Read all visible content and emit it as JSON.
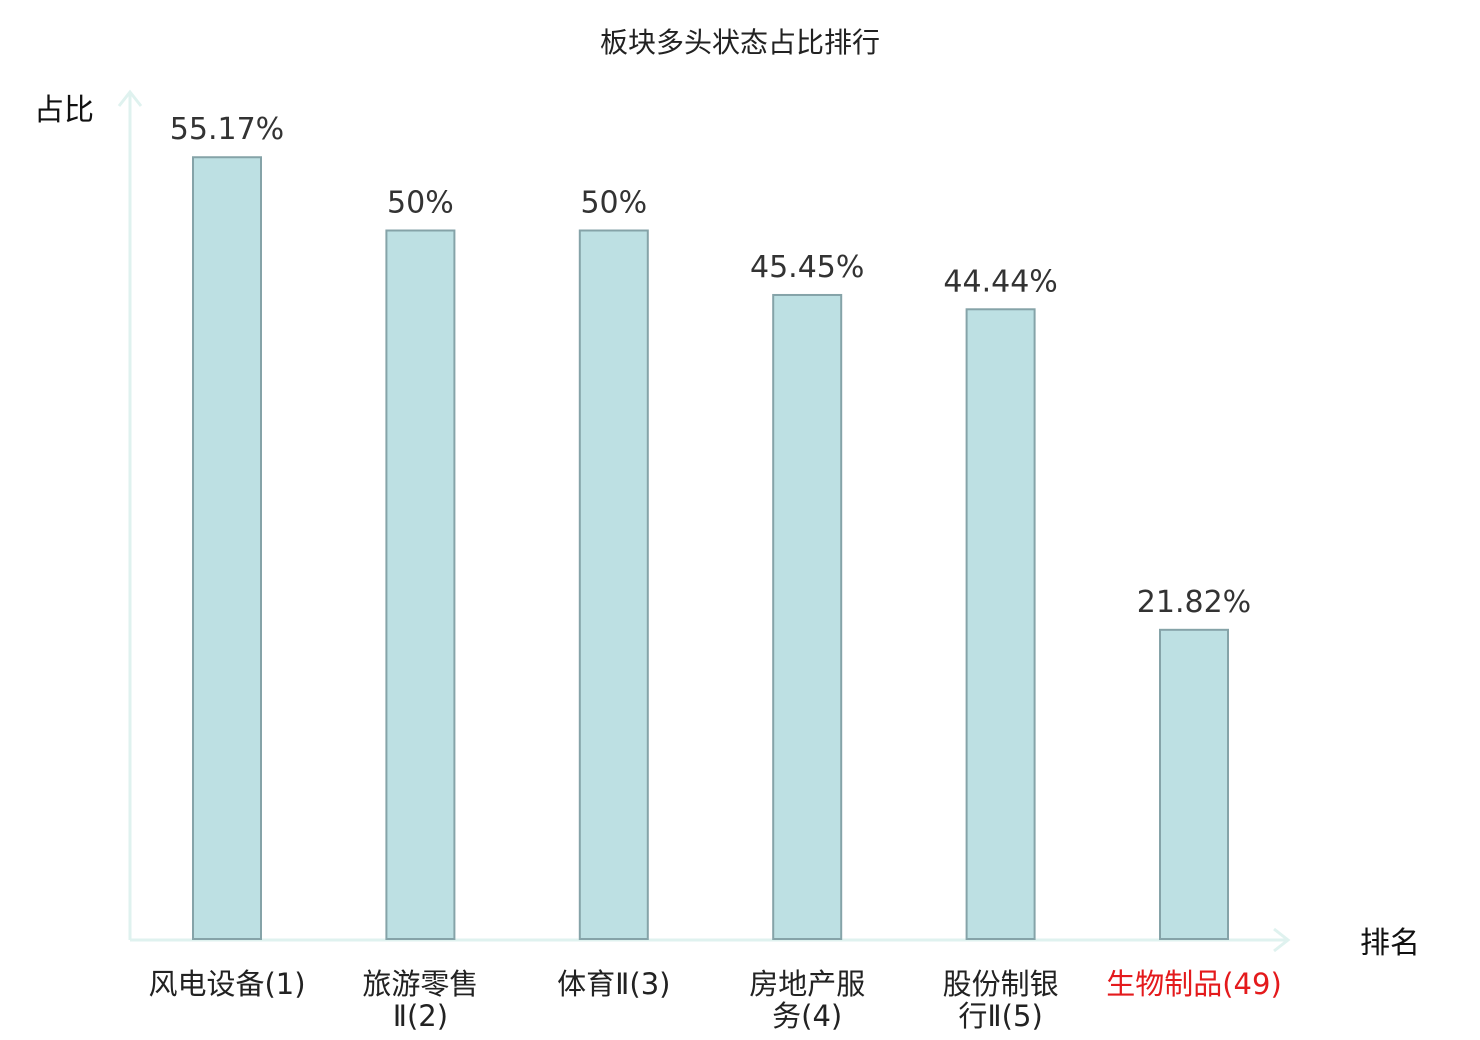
{
  "chart_data": {
    "type": "bar",
    "title": "板块多头状态占比排行",
    "ylabel": "占比",
    "xlabel": "排名",
    "categories": [
      "风电设备(1)",
      "旅游零售Ⅱ(2)",
      "体育Ⅱ(3)",
      "房地产服务(4)",
      "股份制银行Ⅱ(5)",
      "生物制品(49)"
    ],
    "category_lines": [
      [
        "风电设备(1)"
      ],
      [
        "旅游零售",
        "Ⅱ(2)"
      ],
      [
        "体育Ⅱ(3)"
      ],
      [
        "房地产服",
        "务(4)"
      ],
      [
        "股份制银",
        "行Ⅱ(5)"
      ],
      [
        "生物制品(49)"
      ]
    ],
    "values": [
      55.17,
      50,
      50,
      45.45,
      44.44,
      21.82
    ],
    "value_labels": [
      "55.17%",
      "50%",
      "50%",
      "45.45%",
      "44.44%",
      "21.82%"
    ],
    "highlight_index": 5,
    "ylim": [
      0,
      60
    ],
    "grid": false,
    "colors": {
      "bar_fill": "#bde0e3",
      "bar_stroke": "#85a3a8",
      "axis": "#dff2ef",
      "highlight_text": "#e41a1c"
    }
  }
}
